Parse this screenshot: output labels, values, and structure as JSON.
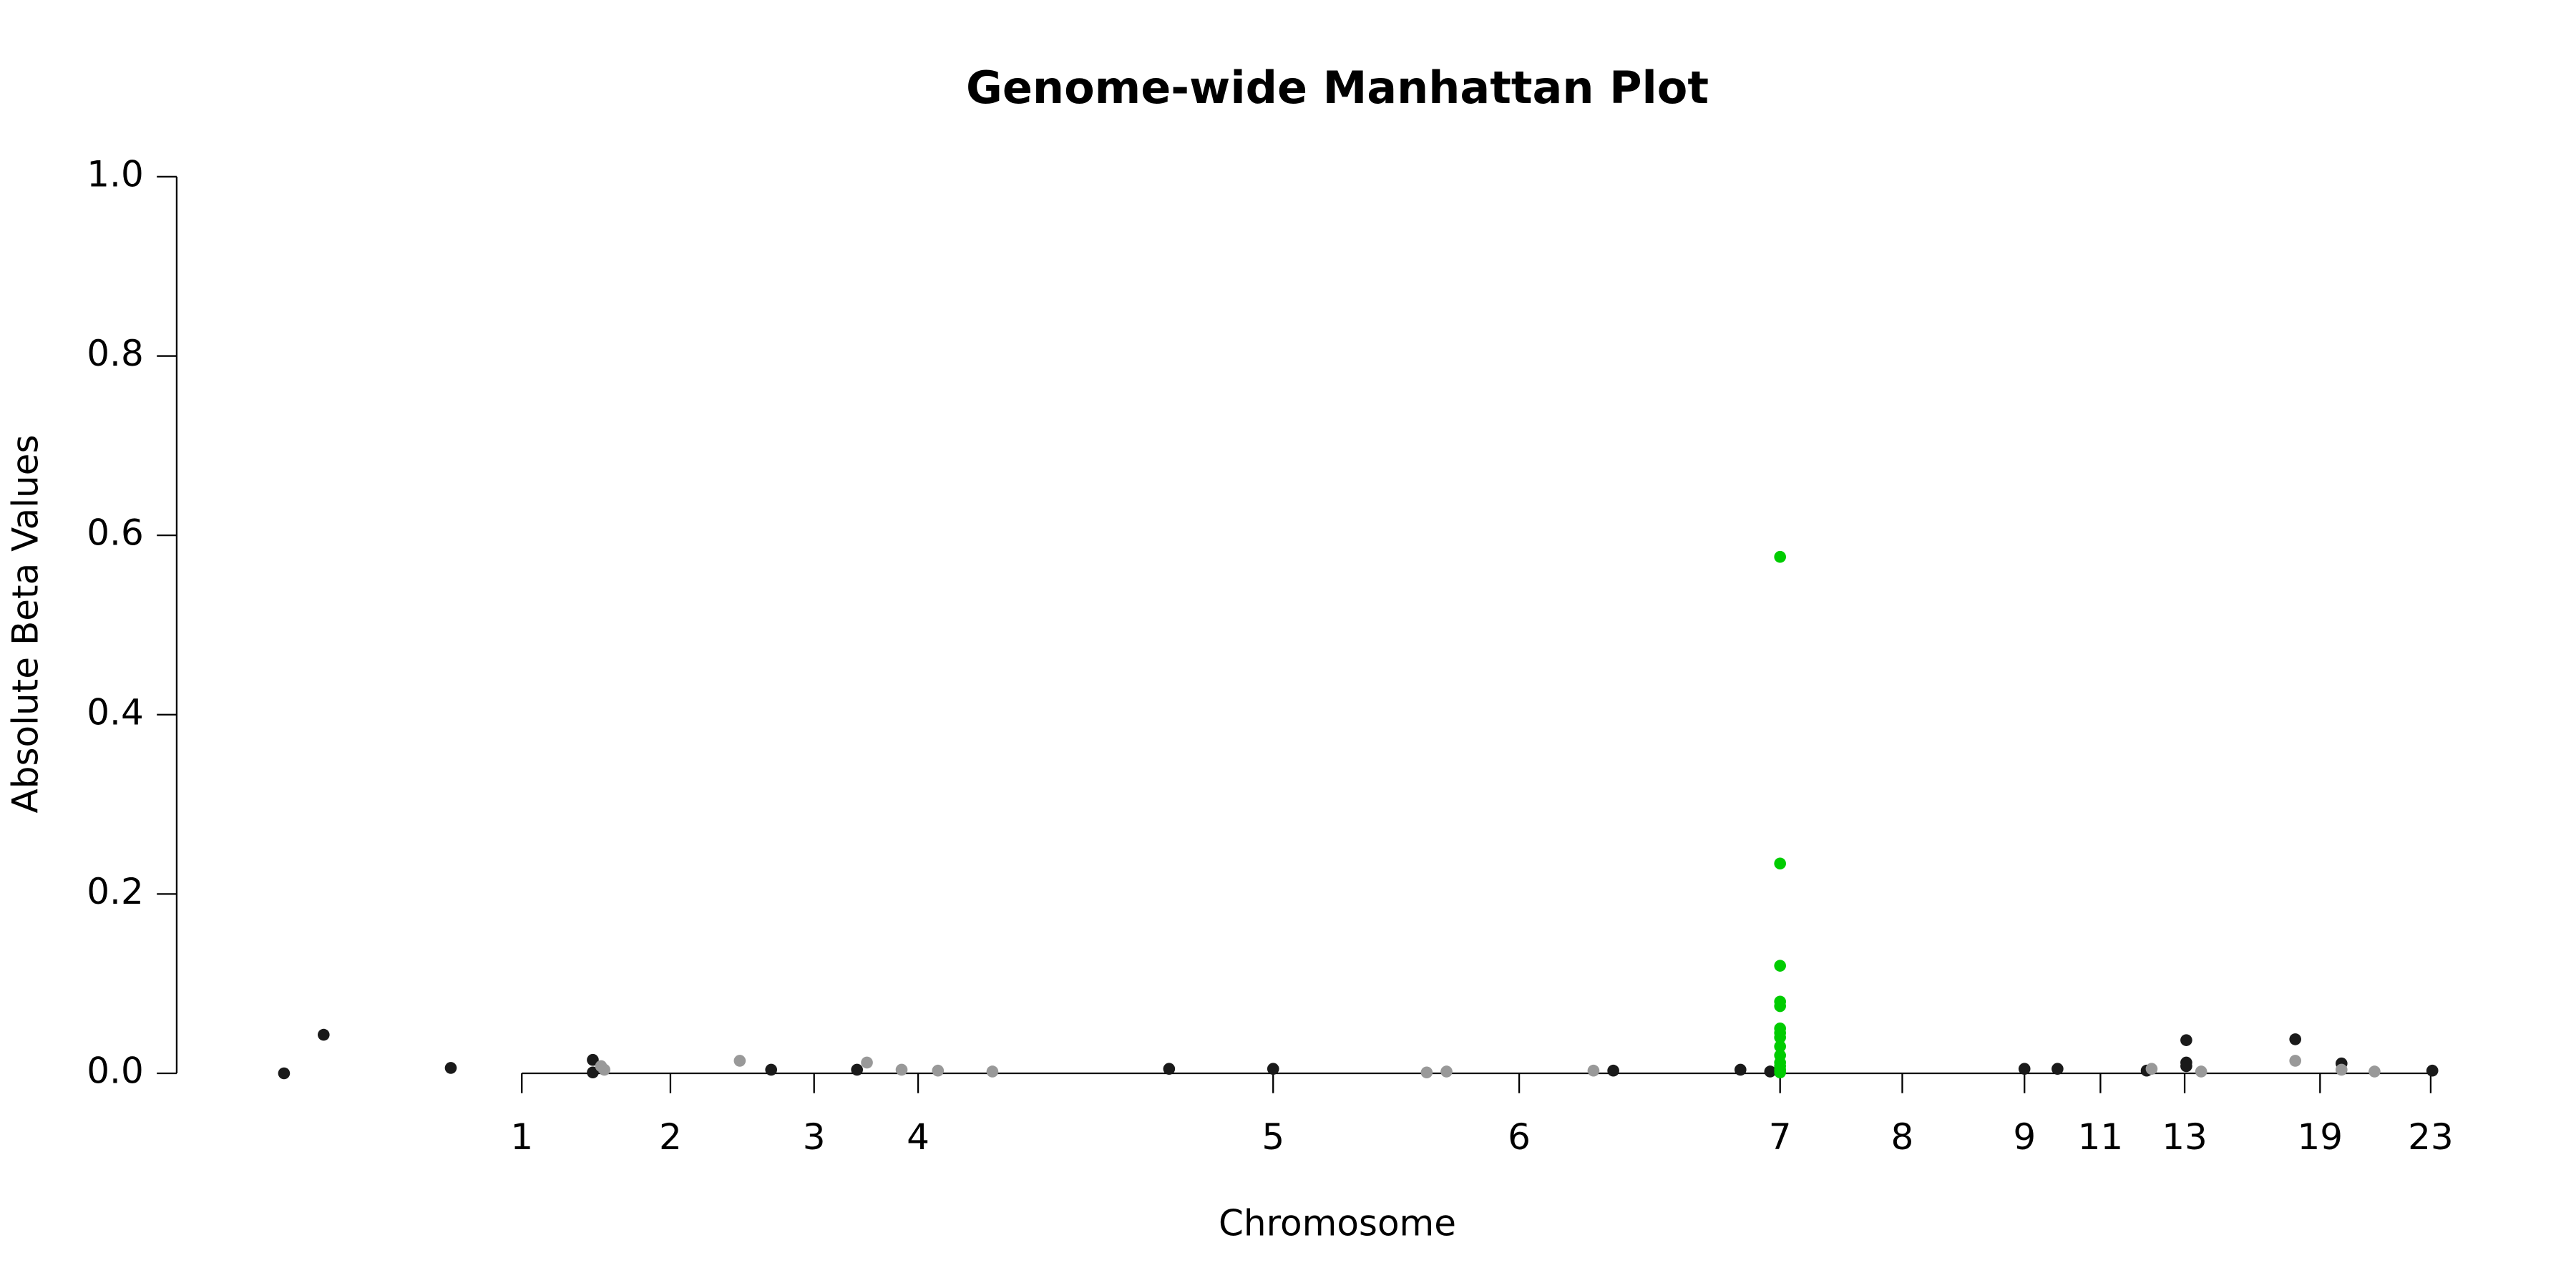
{
  "chart_data": {
    "type": "scatter",
    "title": "Genome-wide Manhattan Plot",
    "x_label": "Chromosome",
    "y_label": "Absolute Beta Values",
    "xlim": [
      100,
      1500
    ],
    "ylim": [
      0,
      1
    ],
    "yticks": [
      {
        "value": 0,
        "label": "0.0"
      },
      0.2,
      0.4,
      0.6,
      0.8,
      {
        "value": 1,
        "label": "1.0"
      }
    ],
    "xticks": [
      {
        "value": 316,
        "label": "1"
      },
      {
        "value": 406,
        "label": "2"
      },
      {
        "value": 493,
        "label": "3"
      },
      {
        "value": 556,
        "label": "4"
      },
      {
        "value": 771,
        "label": "5"
      },
      {
        "value": 920,
        "label": "6"
      },
      {
        "value": 1078,
        "label": "7"
      },
      {
        "value": 1152,
        "label": "8"
      },
      {
        "value": 1226,
        "label": "9"
      },
      {
        "value": 1272,
        "label": "11"
      },
      {
        "value": 1323,
        "label": "13"
      },
      {
        "value": 1405,
        "label": "19"
      },
      {
        "value": 1472,
        "label": "23"
      }
    ],
    "grid": false,
    "series": [
      {
        "color": "#1a1a1a",
        "x": [
          172,
          196,
          273,
          359,
          359,
          467,
          519,
          708,
          771,
          977,
          1054,
          1072,
          1226,
          1246,
          1300,
          1324,
          1324,
          1324,
          1390,
          1418,
          1473
        ],
        "values": [
          0.0,
          0.043,
          0.006,
          0.015,
          0.001,
          0.004,
          0.004,
          0.005,
          0.005,
          0.003,
          0.004,
          0.002,
          0.005,
          0.005,
          0.003,
          0.037,
          0.012,
          0.008,
          0.038,
          0.011,
          0.003
        ]
      },
      {
        "color": "#999999",
        "x": [
          364,
          366,
          448,
          525,
          546,
          568,
          601,
          864,
          876,
          965,
          1303,
          1333,
          1390,
          1418,
          1438
        ],
        "values": [
          0.008,
          0.004,
          0.014,
          0.012,
          0.004,
          0.003,
          0.002,
          0.001,
          0.002,
          0.003,
          0.005,
          0.002,
          0.014,
          0.004,
          0.002
        ]
      },
      {
        "color": "#00cc00",
        "x": [
          1078,
          1078,
          1078,
          1078,
          1078,
          1078,
          1078,
          1078,
          1078,
          1078,
          1078,
          1078,
          1078,
          1078
        ],
        "values": [
          0.576,
          0.234,
          0.12,
          0.08,
          0.075,
          0.05,
          0.045,
          0.04,
          0.03,
          0.02,
          0.012,
          0.008,
          0.004,
          0.001
        ]
      }
    ]
  }
}
